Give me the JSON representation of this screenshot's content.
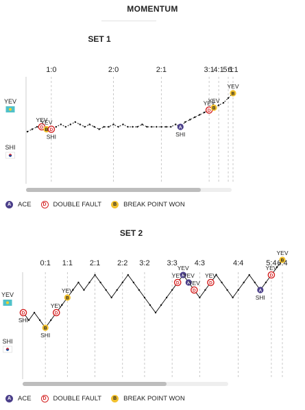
{
  "page": {
    "title": "MOMENTUM"
  },
  "legend": {
    "ace": "ACE",
    "double_fault": "DOUBLE FAULT",
    "break_point_won": "BREAK POINT WON"
  },
  "colors": {
    "ace": "#4b3f8a",
    "double_fault": "#d42020",
    "break_point_won": "#f2c12e",
    "line": "#111111",
    "divider": "#bbbbbb",
    "scrollbar": "#bdbdbd"
  },
  "chart_data": [
    {
      "type": "line",
      "title": "SET 1",
      "players": {
        "top": "YEV",
        "bottom": "SHI"
      },
      "flags": {
        "top": "kazakhstan-flag-icon",
        "bottom": "korea-flag-icon"
      },
      "x": [
        0,
        1,
        2,
        3,
        4,
        5,
        6,
        7,
        8,
        9,
        10,
        11,
        12,
        13,
        14,
        15,
        16,
        17,
        18,
        19,
        20,
        21,
        22,
        23,
        24,
        25,
        26,
        27,
        28,
        29,
        30,
        31,
        32,
        33,
        34,
        35,
        36,
        37,
        38,
        39,
        40,
        41,
        42,
        43
      ],
      "y": [
        -1,
        -0.5,
        0,
        0,
        -0.5,
        -0.5,
        0,
        0.5,
        0,
        0.5,
        1,
        0.5,
        0,
        0.5,
        0,
        -0.5,
        0,
        0,
        0.5,
        0,
        0.5,
        0,
        0,
        0,
        0.5,
        0,
        0,
        0,
        0,
        0,
        0,
        0.5,
        0,
        1,
        1.5,
        2,
        2.5,
        3,
        3.5,
        4,
        4.5,
        5,
        6,
        7
      ],
      "ylim": [
        -8,
        8
      ],
      "games": [
        {
          "label": "1:0",
          "x": 5
        },
        {
          "label": "2:0",
          "x": 18
        },
        {
          "label": "2:1",
          "x": 28
        },
        {
          "label": "3:1",
          "x": 38
        },
        {
          "label": "4:1",
          "x": 40
        },
        {
          "label": "5:1",
          "x": 42
        },
        {
          "label": "6:1",
          "x": 43
        }
      ],
      "events": [
        {
          "type": "double_fault",
          "x": 3,
          "player": "YEV"
        },
        {
          "type": "break_point_won",
          "x": 4,
          "player": "YEV"
        },
        {
          "type": "double_fault",
          "x": 5,
          "player": "SHI"
        },
        {
          "type": "ace",
          "x": 32,
          "player": "SHI"
        },
        {
          "type": "double_fault",
          "x": 38,
          "player": "YEV"
        },
        {
          "type": "break_point_won",
          "x": 39,
          "player": "YEV"
        },
        {
          "type": "break_point_won",
          "x": 43,
          "player": "YEV"
        }
      ],
      "scrollbar_fraction": 0.85
    },
    {
      "type": "line",
      "title": "SET 2",
      "players": {
        "top": "YEV",
        "bottom": "SHI"
      },
      "flags": {
        "top": "kazakhstan-flag-icon",
        "bottom": "korea-flag-icon"
      },
      "x": [
        0,
        1,
        2,
        3,
        4,
        5,
        6,
        7,
        8,
        9,
        10,
        11,
        12,
        13,
        14,
        15,
        16,
        17,
        18,
        19,
        20,
        21,
        22,
        23,
        24,
        25,
        26,
        27,
        28,
        29,
        30,
        31,
        32,
        33,
        34,
        35,
        36,
        37,
        38,
        39,
        40,
        41,
        42,
        43,
        44,
        45,
        46,
        47
      ],
      "y": [
        -1,
        -2,
        -1,
        -2,
        -3,
        -2,
        -1,
        0,
        1,
        2,
        3,
        2,
        3,
        4,
        3,
        2,
        1,
        2,
        3,
        4,
        3,
        2,
        1,
        0,
        -1,
        0,
        1,
        2,
        3,
        4,
        3,
        2,
        1,
        2,
        3,
        4,
        3,
        2,
        1,
        2,
        3,
        4,
        3,
        2,
        3,
        4,
        5,
        6
      ],
      "ylim": [
        -5,
        7
      ],
      "games": [
        {
          "label": "0:1",
          "x": 4
        },
        {
          "label": "1:1",
          "x": 8
        },
        {
          "label": "2:1",
          "x": 13
        },
        {
          "label": "2:2",
          "x": 18
        },
        {
          "label": "3:2",
          "x": 22
        },
        {
          "label": "3:3",
          "x": 27
        },
        {
          "label": "4:3",
          "x": 32
        },
        {
          "label": "4:4",
          "x": 39
        },
        {
          "label": "5:4",
          "x": 45
        },
        {
          "label": "6:4",
          "x": 47
        }
      ],
      "events": [
        {
          "type": "double_fault",
          "x": 0,
          "player": "SHI"
        },
        {
          "type": "break_point_won",
          "x": 4,
          "player": "SHI"
        },
        {
          "type": "double_fault",
          "x": 6,
          "player": "YEV"
        },
        {
          "type": "break_point_won",
          "x": 8,
          "player": "YEV"
        },
        {
          "type": "double_fault",
          "x": 28,
          "player": "YEV"
        },
        {
          "type": "ace",
          "x": 29,
          "player": "YEV"
        },
        {
          "type": "ace",
          "x": 30,
          "player": "YEV"
        },
        {
          "type": "double_fault",
          "x": 31,
          "player": "YEV"
        },
        {
          "type": "double_fault",
          "x": 34,
          "player": "YEV"
        },
        {
          "type": "ace",
          "x": 43,
          "player": "SHI"
        },
        {
          "type": "double_fault",
          "x": 45,
          "player": "YEV"
        },
        {
          "type": "break_point_won",
          "x": 47,
          "player": "YEV"
        }
      ],
      "scrollbar_fraction": 0.7
    }
  ]
}
